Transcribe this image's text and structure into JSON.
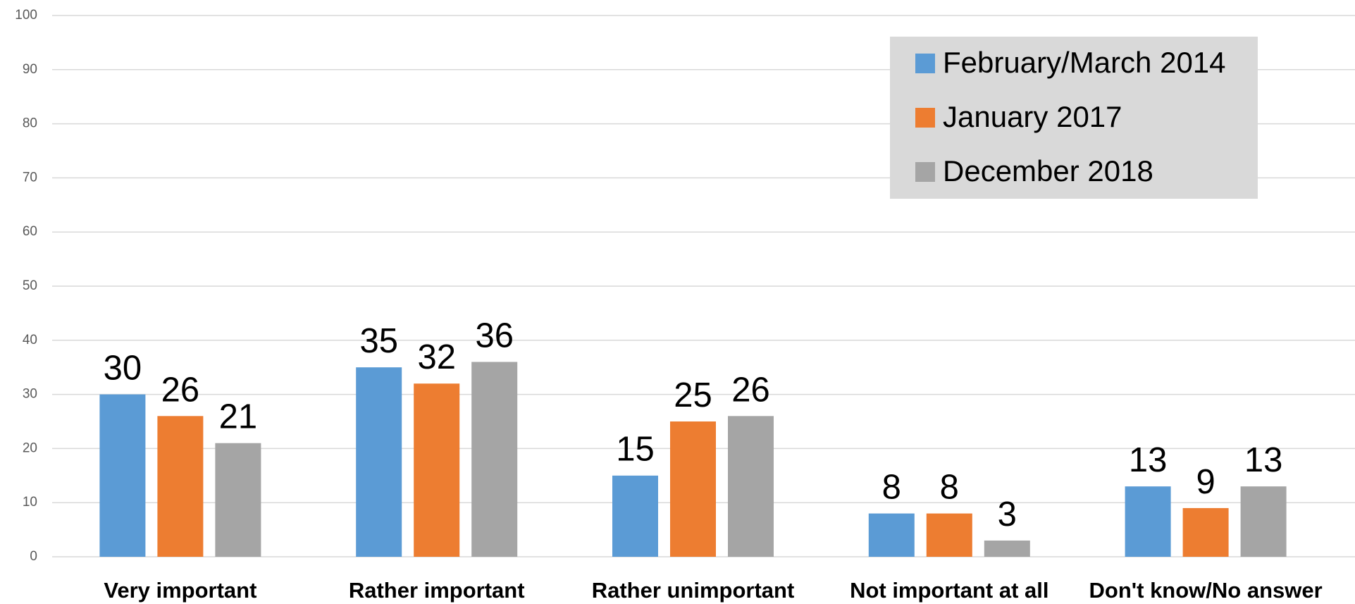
{
  "chart_data": {
    "type": "bar",
    "categories": [
      "Very important",
      "Rather important",
      "Rather unimportant",
      "Not important at all",
      "Don't know/No answer"
    ],
    "series": [
      {
        "name": "February/March 2014",
        "color": "#5b9bd5",
        "values": [
          30,
          35,
          15,
          8,
          13
        ]
      },
      {
        "name": "January 2017",
        "color": "#ed7d31",
        "values": [
          26,
          32,
          25,
          8,
          9
        ]
      },
      {
        "name": "December 2018",
        "color": "#a5a5a5",
        "values": [
          21,
          36,
          26,
          3,
          13
        ]
      }
    ],
    "ylim": [
      0,
      100
    ],
    "yticks": [
      0,
      10,
      20,
      30,
      40,
      50,
      60,
      70,
      80,
      90,
      100
    ],
    "grid": true,
    "legend": "upper right"
  }
}
